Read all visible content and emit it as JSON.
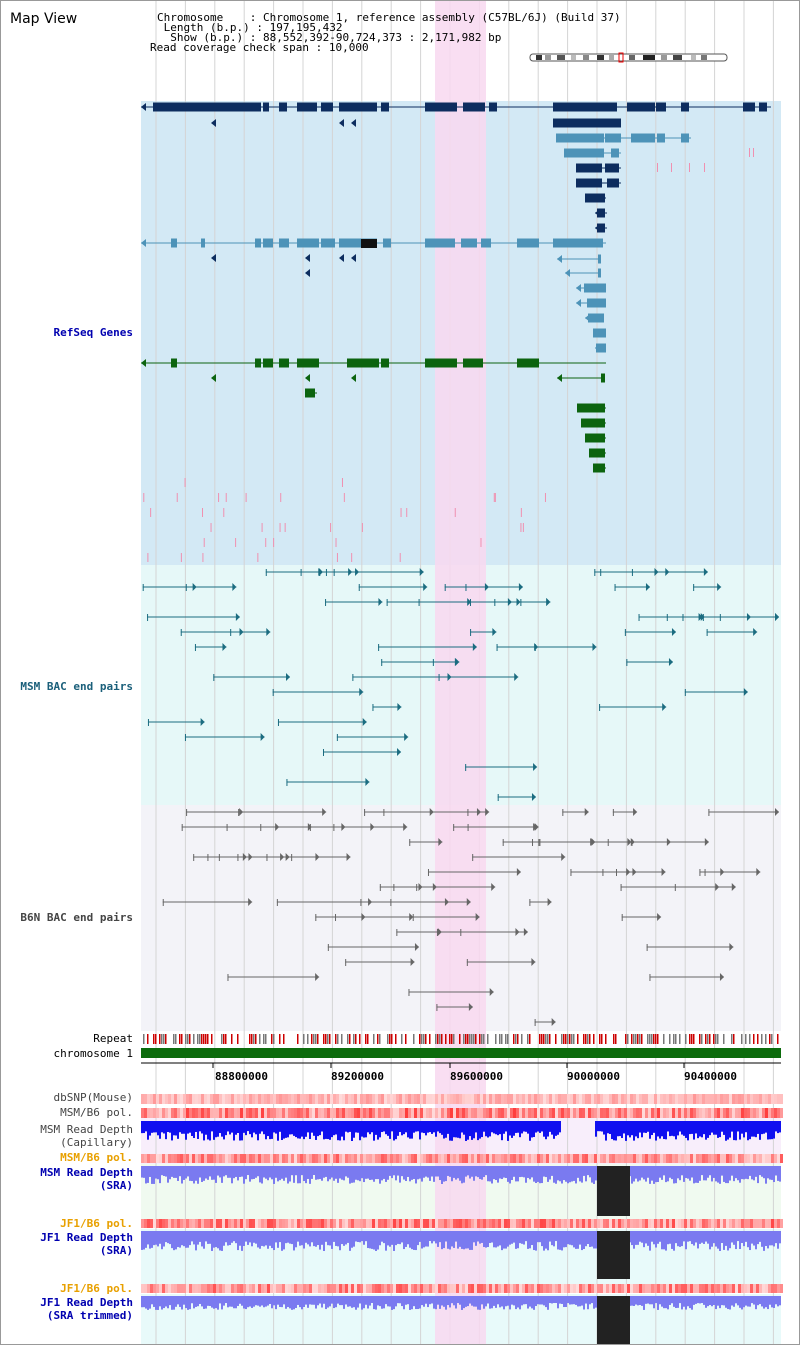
{
  "header": {
    "title": "Map View",
    "chromosome_label": "Chromosome",
    "chromosome_value": "Chromosome 1, reference assembly (C57BL/6J) (Build 37)",
    "length_label": "Length (b.p.)",
    "length_value": "197,195,432",
    "show_label": "Show (b.p.)",
    "show_value": "88,552,392-90,724,373 : 2,171,982 bp",
    "coverage_label": "Read coverage check span",
    "coverage_value": "10,000"
  },
  "tracks": {
    "refseq": "RefSeq Genes",
    "msm_bac": "MSM BAC end pairs",
    "b6n_bac": "B6N BAC end pairs",
    "repeat": "Repeat",
    "chromosome": "chromosome 1",
    "dbsnp": "dbSNP(Mouse)",
    "msm_b6_pol_1": "MSM/B6 pol.",
    "msm_depth_cap_1": "MSM Read Depth",
    "msm_depth_cap_2": "(Capillary)",
    "msm_b6_pol_2": "MSM/B6 pol.",
    "msm_depth_sra_1": "MSM Read Depth",
    "msm_depth_sra_2": "(SRA)",
    "jf1_b6_pol_1": "JF1/B6 pol.",
    "jf1_depth_sra_1": "JF1 Read Depth",
    "jf1_depth_sra_2": "(SRA)",
    "jf1_b6_pol_2": "JF1/B6 pol.",
    "jf1_depth_trim_1": "JF1 Read Depth",
    "jf1_depth_trim_2": "(SRA trimmed)"
  },
  "axis": {
    "ticks": [
      "88800000",
      "89200000",
      "89600000",
      "90000000",
      "90400000"
    ]
  },
  "colors": {
    "refseq_bg": "#d3e9f5",
    "msm_bg": "#e6f8f8",
    "b6n_bg": "#f3f3f8",
    "highlight": "#f8d8f0",
    "gene_dark": "#0d2d5f",
    "gene_mid": "#4d93b8",
    "gene_green": "#0c640f",
    "chromosome_bar": "#0c6b0c",
    "depth_blue": "#1010f0",
    "depth_light": "#7a7af0"
  }
}
